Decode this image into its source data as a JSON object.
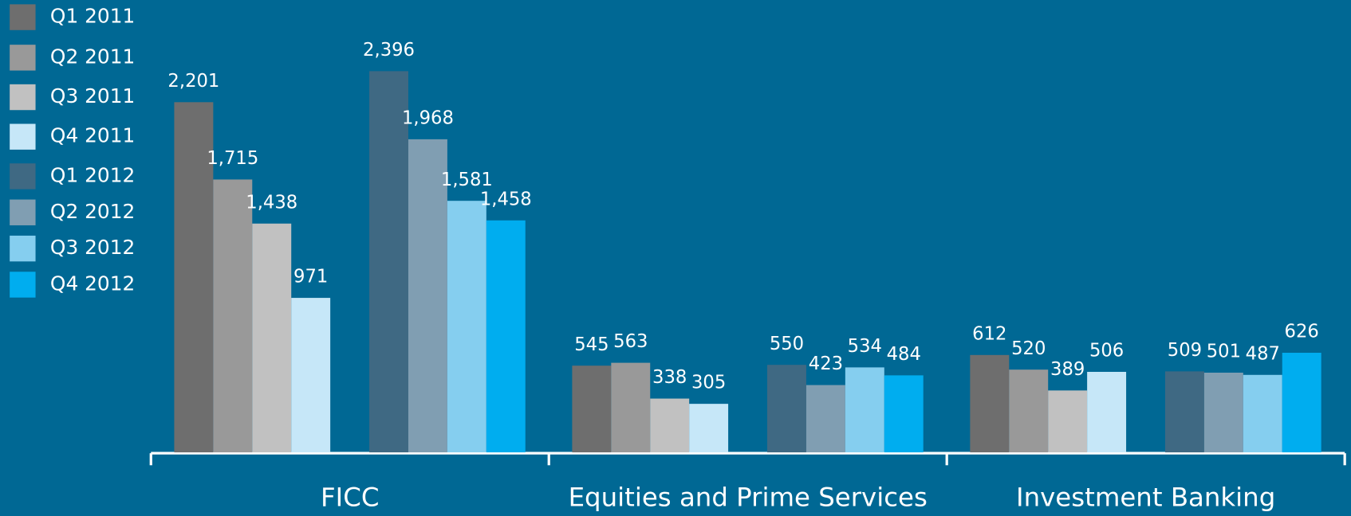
{
  "chart_data": {
    "type": "bar",
    "categories": [
      "FICC",
      "Equities and Prime Services",
      "Investment Banking"
    ],
    "series": [
      {
        "name": "Q1 2011",
        "color": "#6e6e6e",
        "values": [
          2201,
          545,
          612
        ],
        "value_labels": [
          "2,201",
          "545",
          "612"
        ]
      },
      {
        "name": "Q2 2011",
        "color": "#999999",
        "values": [
          1715,
          563,
          520
        ],
        "value_labels": [
          "1,715",
          "563",
          "520"
        ]
      },
      {
        "name": "Q3 2011",
        "color": "#c1c1c1",
        "values": [
          1438,
          338,
          389
        ],
        "value_labels": [
          "1,438",
          "338",
          "389"
        ]
      },
      {
        "name": "Q4 2011",
        "color": "#c6e7f8",
        "values": [
          971,
          305,
          506
        ],
        "value_labels": [
          "971",
          "305",
          "506"
        ]
      },
      {
        "name": "Q1 2012",
        "color": "#3f6983",
        "values": [
          2396,
          550,
          509
        ],
        "value_labels": [
          "2,396",
          "550",
          "509"
        ]
      },
      {
        "name": "Q2 2012",
        "color": "#809eb2",
        "values": [
          1968,
          423,
          501
        ],
        "value_labels": [
          "1,968",
          "423",
          "501"
        ]
      },
      {
        "name": "Q3 2012",
        "color": "#85ceef",
        "values": [
          1581,
          534,
          487
        ],
        "value_labels": [
          "1,581",
          "534",
          "487"
        ]
      },
      {
        "name": "Q4 2012",
        "color": "#00adef",
        "values": [
          1458,
          484,
          626
        ],
        "value_labels": [
          "1,458",
          "484",
          "626"
        ]
      }
    ]
  }
}
